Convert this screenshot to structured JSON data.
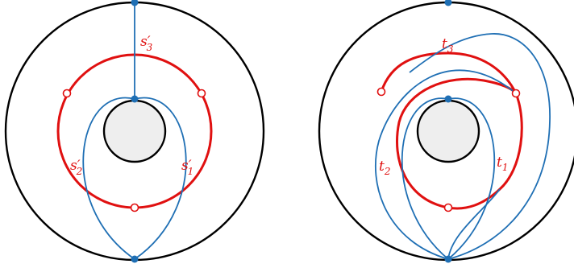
{
  "colors": {
    "boundary": "#000000",
    "hole_fill": "#eeeeee",
    "red": "#e01010",
    "blue": "#1f6fb4"
  },
  "left_panel": {
    "labels": {
      "s3": {
        "base": "s",
        "prime": "′",
        "sub": "3"
      },
      "s2": {
        "base": "s",
        "prime": "′",
        "sub": "2"
      },
      "s1": {
        "base": "s",
        "prime": "′",
        "sub": "1"
      }
    }
  },
  "right_panel": {
    "labels": {
      "t3": {
        "base": "t",
        "sub": "3"
      },
      "t2": {
        "base": "t",
        "sub": "2"
      },
      "t1": {
        "base": "t",
        "sub": "1"
      }
    }
  }
}
